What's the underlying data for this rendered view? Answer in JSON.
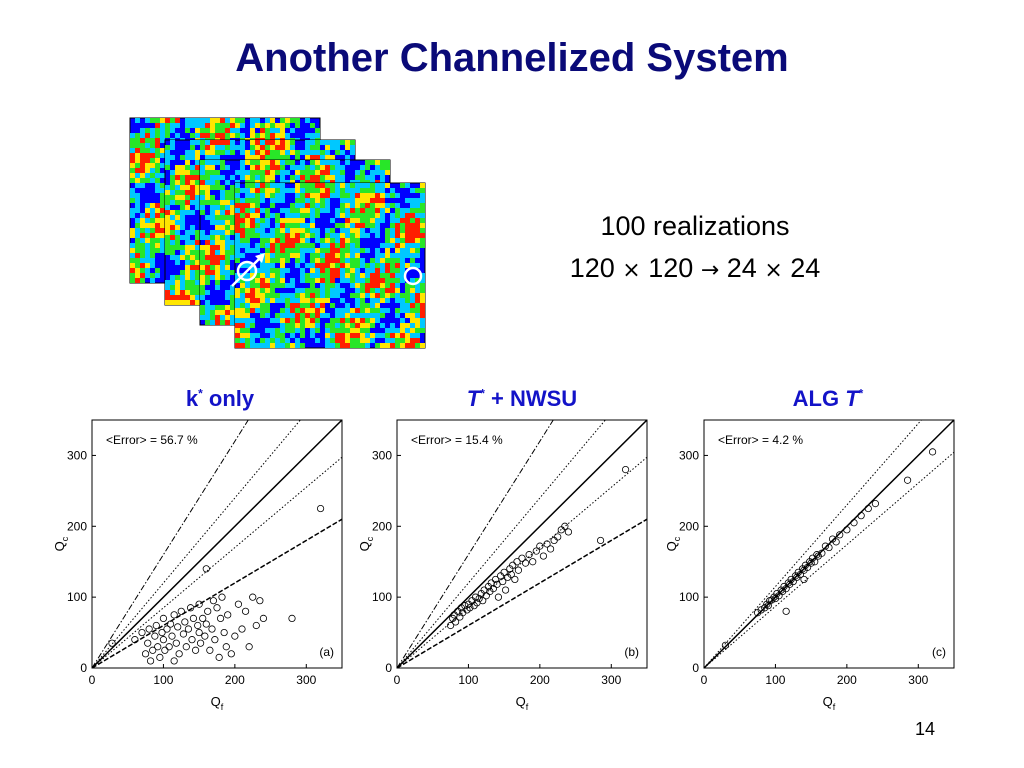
{
  "slide": {
    "title": "Another Channelized System",
    "realizations_line1": "100 realizations",
    "realizations_line2_parts": [
      "120",
      "×",
      "120",
      "→",
      "24",
      "×",
      "24"
    ],
    "page_number": "14"
  },
  "stack_image": {
    "description_icon_well_injector": "flow-arrow-icon",
    "description_icon_well_producer": "circle-icon",
    "colors": [
      "#0000ff",
      "#00c8ff",
      "#28e628",
      "#ffe600",
      "#ff1e00"
    ]
  },
  "panel_titles": [
    {
      "main": "k",
      "sup": "*",
      "suffix": " only",
      "italic": false
    },
    {
      "main": "T",
      "sup": "*",
      "suffix": " + NWSU",
      "italic": true
    },
    {
      "prefix": "ALG ",
      "main": "T",
      "sup": "*",
      "italic": true
    }
  ],
  "chart_data": [
    {
      "type": "scatter",
      "title": "",
      "annotation": "<Error> = 56.7 %",
      "panel_label": "(a)",
      "xlabel": "Q",
      "xlabel_sub": "f",
      "ylabel": "Q",
      "ylabel_sub": "c",
      "xlim": [
        0,
        350
      ],
      "ylim": [
        0,
        350
      ],
      "xticks": [
        0,
        100,
        200,
        300
      ],
      "yticks": [
        0,
        100,
        200,
        300
      ],
      "reference_lines": [
        {
          "style": "solid",
          "slope": 1.0
        },
        {
          "style": "dotted",
          "slope": 1.2
        },
        {
          "style": "dotted",
          "slope": 0.85
        },
        {
          "style": "dashdot",
          "slope": 1.6
        },
        {
          "style": "dashed",
          "slope": 0.6
        }
      ],
      "points": [
        [
          28,
          35
        ],
        [
          60,
          40
        ],
        [
          70,
          50
        ],
        [
          75,
          20
        ],
        [
          78,
          35
        ],
        [
          80,
          55
        ],
        [
          82,
          10
        ],
        [
          85,
          25
        ],
        [
          88,
          45
        ],
        [
          90,
          60
        ],
        [
          92,
          30
        ],
        [
          95,
          15
        ],
        [
          98,
          50
        ],
        [
          100,
          40
        ],
        [
          100,
          70
        ],
        [
          102,
          25
        ],
        [
          105,
          55
        ],
        [
          108,
          30
        ],
        [
          110,
          62
        ],
        [
          112,
          45
        ],
        [
          115,
          10
        ],
        [
          115,
          75
        ],
        [
          118,
          35
        ],
        [
          120,
          58
        ],
        [
          122,
          20
        ],
        [
          125,
          80
        ],
        [
          128,
          48
        ],
        [
          130,
          65
        ],
        [
          132,
          30
        ],
        [
          135,
          55
        ],
        [
          138,
          85
        ],
        [
          140,
          40
        ],
        [
          142,
          70
        ],
        [
          145,
          25
        ],
        [
          148,
          60
        ],
        [
          150,
          50
        ],
        [
          150,
          90
        ],
        [
          152,
          35
        ],
        [
          155,
          70
        ],
        [
          158,
          45
        ],
        [
          160,
          62
        ],
        [
          160,
          140
        ],
        [
          162,
          80
        ],
        [
          165,
          25
        ],
        [
          168,
          55
        ],
        [
          170,
          95
        ],
        [
          172,
          40
        ],
        [
          175,
          85
        ],
        [
          178,
          15
        ],
        [
          180,
          70
        ],
        [
          182,
          100
        ],
        [
          185,
          50
        ],
        [
          188,
          30
        ],
        [
          190,
          75
        ],
        [
          195,
          20
        ],
        [
          200,
          45
        ],
        [
          205,
          90
        ],
        [
          210,
          55
        ],
        [
          215,
          80
        ],
        [
          220,
          30
        ],
        [
          225,
          100
        ],
        [
          230,
          60
        ],
        [
          235,
          95
        ],
        [
          240,
          70
        ],
        [
          280,
          70
        ],
        [
          320,
          225
        ]
      ]
    },
    {
      "type": "scatter",
      "title": "",
      "annotation": "<Error> = 15.4 %",
      "panel_label": "(b)",
      "xlabel": "Q",
      "xlabel_sub": "f",
      "ylabel": "Q",
      "ylabel_sub": "c",
      "xlim": [
        0,
        350
      ],
      "ylim": [
        0,
        350
      ],
      "xticks": [
        0,
        100,
        200,
        300
      ],
      "yticks": [
        0,
        100,
        200,
        300
      ],
      "reference_lines": [
        {
          "style": "solid",
          "slope": 1.0
        },
        {
          "style": "dotted",
          "slope": 1.2
        },
        {
          "style": "dotted",
          "slope": 0.85
        },
        {
          "style": "dashdot",
          "slope": 1.6
        },
        {
          "style": "dashed",
          "slope": 0.6
        }
      ],
      "points": [
        [
          75,
          60
        ],
        [
          78,
          70
        ],
        [
          80,
          75
        ],
        [
          82,
          65
        ],
        [
          85,
          80
        ],
        [
          88,
          72
        ],
        [
          90,
          85
        ],
        [
          92,
          78
        ],
        [
          95,
          88
        ],
        [
          98,
          82
        ],
        [
          100,
          90
        ],
        [
          102,
          85
        ],
        [
          105,
          95
        ],
        [
          108,
          88
        ],
        [
          110,
          100
        ],
        [
          112,
          92
        ],
        [
          115,
          98
        ],
        [
          118,
          105
        ],
        [
          120,
          95
        ],
        [
          122,
          110
        ],
        [
          125,
          102
        ],
        [
          128,
          115
        ],
        [
          130,
          108
        ],
        [
          132,
          120
        ],
        [
          135,
          112
        ],
        [
          138,
          125
        ],
        [
          140,
          118
        ],
        [
          142,
          100
        ],
        [
          145,
          130
        ],
        [
          148,
          122
        ],
        [
          150,
          135
        ],
        [
          152,
          110
        ],
        [
          155,
          128
        ],
        [
          158,
          140
        ],
        [
          160,
          132
        ],
        [
          162,
          145
        ],
        [
          165,
          125
        ],
        [
          168,
          150
        ],
        [
          170,
          138
        ],
        [
          175,
          155
        ],
        [
          180,
          148
        ],
        [
          185,
          160
        ],
        [
          190,
          150
        ],
        [
          195,
          165
        ],
        [
          200,
          172
        ],
        [
          205,
          158
        ],
        [
          210,
          175
        ],
        [
          215,
          168
        ],
        [
          220,
          180
        ],
        [
          225,
          185
        ],
        [
          230,
          195
        ],
        [
          235,
          200
        ],
        [
          240,
          192
        ],
        [
          285,
          180
        ],
        [
          320,
          280
        ]
      ]
    },
    {
      "type": "scatter",
      "title": "",
      "annotation": "<Error> = 4.2 %",
      "panel_label": "(c)",
      "xlabel": "Q",
      "xlabel_sub": "f",
      "ylabel": "Q",
      "ylabel_sub": "c",
      "xlim": [
        0,
        350
      ],
      "ylim": [
        0,
        350
      ],
      "xticks": [
        0,
        100,
        200,
        300
      ],
      "yticks": [
        0,
        100,
        200,
        300
      ],
      "reference_lines": [
        {
          "style": "solid",
          "slope": 1.0
        },
        {
          "style": "dotted",
          "slope": 1.15
        },
        {
          "style": "dotted",
          "slope": 0.87
        }
      ],
      "points": [
        [
          30,
          32
        ],
        [
          75,
          78
        ],
        [
          80,
          82
        ],
        [
          85,
          85
        ],
        [
          88,
          90
        ],
        [
          90,
          88
        ],
        [
          92,
          95
        ],
        [
          95,
          96
        ],
        [
          98,
          100
        ],
        [
          100,
          98
        ],
        [
          102,
          105
        ],
        [
          105,
          102
        ],
        [
          108,
          110
        ],
        [
          110,
          108
        ],
        [
          112,
          115
        ],
        [
          115,
          80
        ],
        [
          115,
          112
        ],
        [
          118,
          120
        ],
        [
          120,
          118
        ],
        [
          122,
          125
        ],
        [
          125,
          122
        ],
        [
          128,
          130
        ],
        [
          130,
          128
        ],
        [
          132,
          135
        ],
        [
          135,
          132
        ],
        [
          138,
          140
        ],
        [
          140,
          125
        ],
        [
          140,
          138
        ],
        [
          142,
          145
        ],
        [
          145,
          142
        ],
        [
          148,
          150
        ],
        [
          150,
          148
        ],
        [
          152,
          155
        ],
        [
          155,
          150
        ],
        [
          158,
          160
        ],
        [
          160,
          158
        ],
        [
          165,
          162
        ],
        [
          170,
          172
        ],
        [
          175,
          170
        ],
        [
          180,
          182
        ],
        [
          185,
          178
        ],
        [
          190,
          188
        ],
        [
          200,
          195
        ],
        [
          210,
          205
        ],
        [
          220,
          215
        ],
        [
          230,
          225
        ],
        [
          240,
          232
        ],
        [
          285,
          265
        ],
        [
          320,
          305
        ]
      ]
    }
  ]
}
